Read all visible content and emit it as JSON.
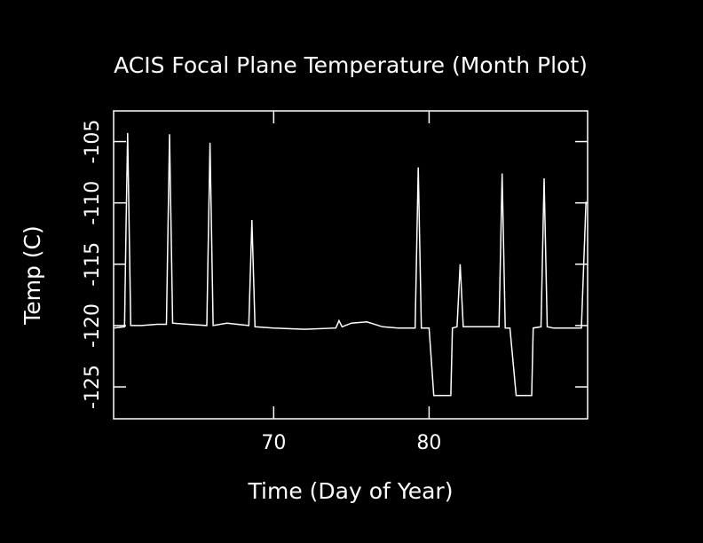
{
  "chart_data": {
    "type": "line",
    "title": "ACIS Focal Plane Temperature (Month Plot)",
    "x_label": "Time (Day of Year)",
    "y_label": "Temp (C)",
    "x": [
      59.7,
      60.4,
      60.5,
      60.6,
      60.7,
      60.8,
      61.5,
      62.5,
      63.1,
      63.3,
      63.5,
      64.5,
      65.7,
      65.9,
      66.1,
      67,
      68.4,
      68.6,
      68.8,
      70,
      72,
      74,
      74.2,
      74.4,
      75,
      76,
      77,
      78,
      79.1,
      79.3,
      79.5,
      80.0,
      80.3,
      81.4,
      81.5,
      81.8,
      82.0,
      82.2,
      83,
      84.5,
      84.7,
      84.9,
      85.2,
      85.6,
      86.6,
      86.7,
      87.2,
      87.4,
      87.6,
      88,
      89.8,
      90.1
    ],
    "series": [
      {
        "color": "#ffffff",
        "values": [
          -120.2,
          -120.1,
          -112,
          -104.3,
          -112,
          -120,
          -120,
          -119.9,
          -119.9,
          -104.4,
          -119.8,
          -119.9,
          -120,
          -105.1,
          -120,
          -119.8,
          -120,
          -111.4,
          -120.1,
          -120.2,
          -120.3,
          -120.2,
          -119.6,
          -120.1,
          -119.8,
          -119.7,
          -120.1,
          -120.2,
          -120.2,
          -107.1,
          -120.2,
          -120.2,
          -125.7,
          -125.7,
          -120.2,
          -120.1,
          -115,
          -120.1,
          -120.1,
          -120.1,
          -107.6,
          -120.2,
          -120.2,
          -125.7,
          -125.7,
          -120.2,
          -120.1,
          -108,
          -120.1,
          -120.2,
          -120.2,
          -109.9
        ]
      }
    ],
    "xlim": [
      59.7,
      90.2
    ],
    "ylim": [
      -127.6,
      -102.5
    ],
    "xticks": [
      70,
      80
    ],
    "yticks": [
      -125,
      -120,
      -115,
      -110,
      -105
    ]
  }
}
